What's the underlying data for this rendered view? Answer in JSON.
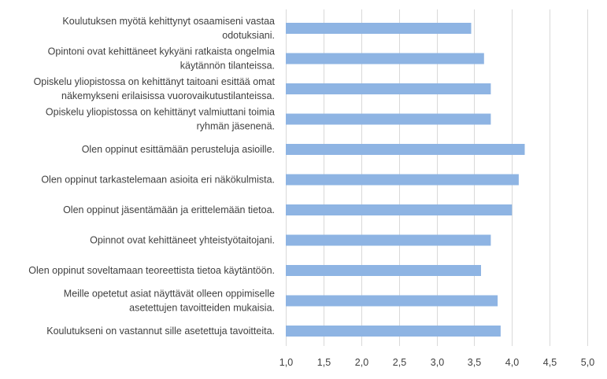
{
  "chart_data": {
    "type": "bar",
    "orientation": "horizontal",
    "title": "",
    "xlabel": "",
    "ylabel": "",
    "xlim": [
      1.0,
      5.0
    ],
    "ticks": [
      "1,0",
      "1,5",
      "2,0",
      "2,5",
      "3,0",
      "3,5",
      "4,0",
      "4,5",
      "5,0"
    ],
    "tick_values": [
      1.0,
      1.5,
      2.0,
      2.5,
      3.0,
      3.5,
      4.0,
      4.5,
      5.0
    ],
    "grid": true,
    "bar_color": "#8eb4e3",
    "grid_color": "#d9d9d9",
    "categories": [
      [
        "Koulutuksen myötä kehittynyt osaamiseni vastaa",
        "odotuksiani."
      ],
      [
        "Opintoni ovat kehittäneet kykyäni ratkaista ongelmia",
        "käytännön tilanteissa."
      ],
      [
        "Opiskelu yliopistossa on kehittänyt taitoani esittää omat",
        "näkemykseni erilaisissa vuorovaikutustilanteissa."
      ],
      [
        "Opiskelu yliopistossa on kehittänyt valmiuttani toimia",
        "ryhmän jäsenenä."
      ],
      [
        "Olen oppinut esittämään perusteluja asioille."
      ],
      [
        "Olen oppinut tarkastelemaan asioita eri näkökulmista."
      ],
      [
        "Olen oppinut jäsentämään ja erittelemään tietoa."
      ],
      [
        "Opinnot ovat kehittäneet yhteistyötaitojani."
      ],
      [
        "Olen oppinut soveltamaan teoreettista tietoa käytäntöön."
      ],
      [
        "Meille opetetut asiat näyttävät olleen oppimiselle",
        "asetettujen tavoitteiden mukaisia."
      ],
      [
        "Koulutukseni on vastannut  sille asetettuja tavoitteita."
      ]
    ],
    "values": [
      3.46,
      3.63,
      3.72,
      3.72,
      4.17,
      4.09,
      4.0,
      3.72,
      3.59,
      3.81,
      3.85
    ]
  }
}
